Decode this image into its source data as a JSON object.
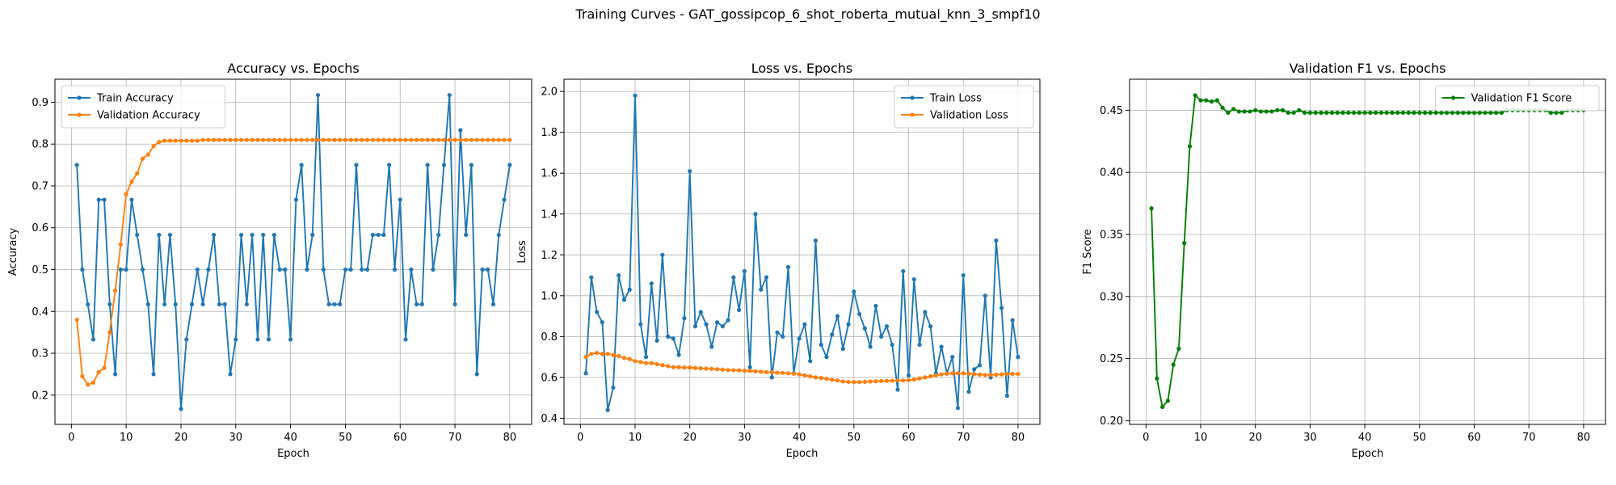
{
  "suptitle": "Training Curves - GAT_gossipcop_6_shot_roberta_mutual_knn_3_smpf10",
  "chart_data": [
    {
      "type": "line",
      "title": "Accuracy vs. Epochs",
      "xlabel": "Epoch",
      "ylabel": "Accuracy",
      "xlim": [
        -3,
        84
      ],
      "ylim": [
        0.13,
        0.955
      ],
      "xticks": [
        0,
        10,
        20,
        30,
        40,
        50,
        60,
        70,
        80
      ],
      "yticks": [
        0.2,
        0.3,
        0.4,
        0.5,
        0.6,
        0.7,
        0.8,
        0.9
      ],
      "ytick_labels": [
        "0.2",
        "0.3",
        "0.4",
        "0.5",
        "0.6",
        "0.7",
        "0.8",
        "0.9"
      ],
      "grid": true,
      "legend_position": "upper-left",
      "series": [
        {
          "name": "Train Accuracy",
          "color": "#1f77b4",
          "values": [
            0.75,
            0.5,
            0.417,
            0.333,
            0.667,
            0.667,
            0.417,
            0.25,
            0.5,
            0.5,
            0.667,
            0.583,
            0.5,
            0.417,
            0.25,
            0.583,
            0.417,
            0.583,
            0.417,
            0.167,
            0.333,
            0.417,
            0.5,
            0.417,
            0.5,
            0.583,
            0.417,
            0.417,
            0.25,
            0.333,
            0.583,
            0.417,
            0.583,
            0.333,
            0.583,
            0.333,
            0.583,
            0.5,
            0.5,
            0.333,
            0.667,
            0.75,
            0.5,
            0.583,
            0.917,
            0.5,
            0.417,
            0.417,
            0.417,
            0.5,
            0.5,
            0.75,
            0.5,
            0.5,
            0.583,
            0.583,
            0.583,
            0.75,
            0.5,
            0.667,
            0.333,
            0.5,
            0.417,
            0.417,
            0.75,
            0.5,
            0.583,
            0.75,
            0.917,
            0.417,
            0.833,
            0.583,
            0.75,
            0.25,
            0.5,
            0.5,
            0.417,
            0.583,
            0.667,
            0.75
          ]
        },
        {
          "name": "Validation Accuracy",
          "color": "#ff7f0e",
          "values": [
            0.38,
            0.245,
            0.225,
            0.23,
            0.255,
            0.265,
            0.35,
            0.45,
            0.56,
            0.68,
            0.71,
            0.73,
            0.765,
            0.775,
            0.795,
            0.805,
            0.808,
            0.808,
            0.808,
            0.808,
            0.808,
            0.808,
            0.808,
            0.81,
            0.81,
            0.81,
            0.81,
            0.81,
            0.81,
            0.81,
            0.81,
            0.81,
            0.81,
            0.81,
            0.81,
            0.81,
            0.81,
            0.81,
            0.81,
            0.81,
            0.81,
            0.81,
            0.81,
            0.81,
            0.81,
            0.81,
            0.81,
            0.81,
            0.81,
            0.81,
            0.81,
            0.81,
            0.81,
            0.81,
            0.81,
            0.81,
            0.81,
            0.81,
            0.81,
            0.81,
            0.81,
            0.81,
            0.81,
            0.81,
            0.81,
            0.81,
            0.81,
            0.81,
            0.81,
            0.81,
            0.81,
            0.81,
            0.81,
            0.81,
            0.81,
            0.81,
            0.81,
            0.81,
            0.81,
            0.81
          ]
        }
      ]
    },
    {
      "type": "line",
      "title": "Loss vs. Epochs",
      "xlabel": "Epoch",
      "ylabel": "Loss",
      "xlim": [
        -3,
        84
      ],
      "ylim": [
        0.37,
        2.06
      ],
      "xticks": [
        0,
        10,
        20,
        30,
        40,
        50,
        60,
        70,
        80
      ],
      "yticks": [
        0.4,
        0.6,
        0.8,
        1.0,
        1.2,
        1.4,
        1.6,
        1.8,
        2.0
      ],
      "ytick_labels": [
        "0.4",
        "0.6",
        "0.8",
        "1.0",
        "1.2",
        "1.4",
        "1.6",
        "1.8",
        "2.0"
      ],
      "grid": true,
      "legend_position": "upper-right",
      "series": [
        {
          "name": "Train Loss",
          "color": "#1f77b4",
          "values": [
            0.62,
            1.09,
            0.92,
            0.87,
            0.44,
            0.55,
            1.1,
            0.98,
            1.03,
            1.98,
            0.86,
            0.7,
            1.06,
            0.78,
            1.2,
            0.8,
            0.79,
            0.71,
            0.89,
            1.61,
            0.85,
            0.92,
            0.86,
            0.75,
            0.87,
            0.85,
            0.88,
            1.09,
            0.93,
            1.12,
            0.65,
            1.4,
            1.03,
            1.09,
            0.6,
            0.82,
            0.8,
            1.14,
            0.62,
            0.79,
            0.86,
            0.68,
            1.27,
            0.76,
            0.7,
            0.81,
            0.9,
            0.74,
            0.86,
            1.02,
            0.91,
            0.84,
            0.75,
            0.95,
            0.8,
            0.85,
            0.76,
            0.54,
            1.12,
            0.61,
            1.08,
            0.76,
            0.92,
            0.85,
            0.62,
            0.75,
            0.62,
            0.7,
            0.45,
            1.1,
            0.53,
            0.64,
            0.66,
            1.0,
            0.6,
            1.27,
            0.94,
            0.51,
            0.88,
            0.7
          ]
        },
        {
          "name": "Validation Loss",
          "color": "#ff7f0e",
          "values": [
            0.7,
            0.715,
            0.72,
            0.715,
            0.715,
            0.71,
            0.705,
            0.695,
            0.69,
            0.68,
            0.675,
            0.67,
            0.67,
            0.665,
            0.66,
            0.655,
            0.65,
            0.65,
            0.648,
            0.648,
            0.646,
            0.645,
            0.643,
            0.642,
            0.64,
            0.638,
            0.636,
            0.635,
            0.635,
            0.633,
            0.632,
            0.63,
            0.628,
            0.626,
            0.625,
            0.623,
            0.622,
            0.62,
            0.618,
            0.615,
            0.61,
            0.605,
            0.6,
            0.597,
            0.593,
            0.588,
            0.585,
            0.58,
            0.578,
            0.577,
            0.577,
            0.578,
            0.58,
            0.581,
            0.582,
            0.583,
            0.584,
            0.585,
            0.585,
            0.586,
            0.59,
            0.595,
            0.6,
            0.605,
            0.61,
            0.615,
            0.618,
            0.62,
            0.62,
            0.62,
            0.618,
            0.616,
            0.614,
            0.612,
            0.612,
            0.613,
            0.615,
            0.616,
            0.617,
            0.617
          ]
        }
      ]
    },
    {
      "type": "line",
      "title": "Validation F1 vs. Epochs",
      "xlabel": "Epoch",
      "ylabel": "F1 Score",
      "xlim": [
        -3,
        84
      ],
      "ylim": [
        0.197,
        0.475
      ],
      "xticks": [
        0,
        10,
        20,
        30,
        40,
        50,
        60,
        70,
        80
      ],
      "yticks": [
        0.2,
        0.25,
        0.3,
        0.35,
        0.4,
        0.45
      ],
      "ytick_labels": [
        "0.20",
        "0.25",
        "0.30",
        "0.35",
        "0.40",
        "0.45"
      ],
      "grid": true,
      "legend_position": "upper-right",
      "series": [
        {
          "name": "Validation F1 Score",
          "color": "#008000",
          "values": [
            0.371,
            0.234,
            0.211,
            0.216,
            0.245,
            0.258,
            0.343,
            0.421,
            0.462,
            0.458,
            0.458,
            0.457,
            0.458,
            0.452,
            0.448,
            0.451,
            0.449,
            0.449,
            0.449,
            0.45,
            0.449,
            0.449,
            0.449,
            0.45,
            0.45,
            0.448,
            0.448,
            0.45,
            0.448,
            0.448,
            0.448,
            0.448,
            0.448,
            0.448,
            0.448,
            0.448,
            0.448,
            0.448,
            0.448,
            0.448,
            0.448,
            0.448,
            0.448,
            0.448,
            0.448,
            0.448,
            0.448,
            0.448,
            0.448,
            0.448,
            0.448,
            0.448,
            0.448,
            0.448,
            0.448,
            0.448,
            0.448,
            0.448,
            0.448,
            0.448,
            0.448,
            0.448,
            0.448,
            0.448,
            0.448,
            0.45,
            0.45,
            0.45,
            0.45,
            0.45,
            0.45,
            0.45,
            0.45,
            0.448,
            0.448,
            0.448,
            0.45,
            0.45,
            0.45,
            0.45
          ]
        }
      ]
    }
  ]
}
